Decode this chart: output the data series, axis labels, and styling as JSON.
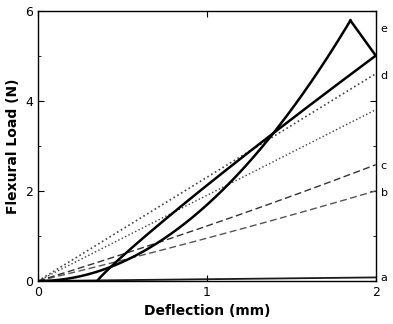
{
  "title": "",
  "xlabel": "Deflection (mm)",
  "ylabel": "Flexural Load (N)",
  "xlim": [
    0,
    2
  ],
  "ylim": [
    0,
    6
  ],
  "xticks": [
    0,
    1,
    2
  ],
  "yticks": [
    0,
    2,
    4,
    6
  ],
  "background_color": "#ffffff",
  "label_fontsize": 8,
  "axis_fontsize": 10,
  "tick_fontsize": 9,
  "curve_a_color": "#1a1a1a",
  "curve_a_lw": 1.3,
  "curve_b_color": "#555555",
  "curve_b_lw": 1.0,
  "curve_c_color": "#333333",
  "curve_c_lw": 1.0,
  "curve_d_color": "#444444",
  "curve_d_lw": 1.2,
  "curve_e_color": "#000000",
  "curve_e_lw": 1.8
}
